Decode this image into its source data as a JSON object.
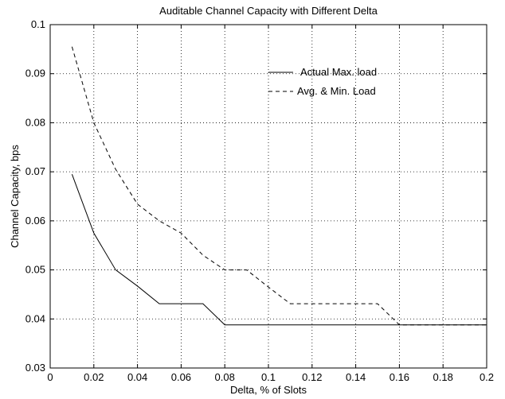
{
  "chart_data": {
    "type": "line",
    "title": "Auditable Channel Capacity with Different Delta",
    "xlabel": "Delta, % of Slots",
    "ylabel": "Channel Capacity, bps",
    "xlim": [
      0,
      0.2
    ],
    "ylim": [
      0.03,
      0.1
    ],
    "xticks": [
      0,
      0.02,
      0.04,
      0.06,
      0.08,
      0.1,
      0.12,
      0.14,
      0.16,
      0.18,
      0.2
    ],
    "xtick_labels": [
      "0",
      "0.02",
      "0.04",
      "0.06",
      "0.08",
      "0.1",
      "0.12",
      "0.14",
      "0.16",
      "0.18",
      "0.2"
    ],
    "yticks": [
      0.03,
      0.04,
      0.05,
      0.06,
      0.07,
      0.08,
      0.09,
      0.1
    ],
    "ytick_labels": [
      "0.03",
      "0.04",
      "0.05",
      "0.06",
      "0.07",
      "0.08",
      "0.09",
      "0.1"
    ],
    "grid": true,
    "legend_position": "top-right",
    "series": [
      {
        "name": "Actual Max. load",
        "style": "solid",
        "color": "#000000",
        "x": [
          0.01,
          0.02,
          0.03,
          0.04,
          0.05,
          0.06,
          0.07,
          0.08,
          0.09,
          0.1,
          0.11,
          0.12,
          0.13,
          0.14,
          0.15,
          0.16,
          0.17,
          0.18,
          0.19,
          0.2
        ],
        "y": [
          0.0695,
          0.0575,
          0.05,
          0.0467,
          0.0431,
          0.0431,
          0.0431,
          0.0388,
          0.0388,
          0.0388,
          0.0388,
          0.0388,
          0.0388,
          0.0388,
          0.0388,
          0.0388,
          0.0388,
          0.0388,
          0.0388,
          0.0388
        ]
      },
      {
        "name": "Avg. & Min. Load",
        "style": "dashed",
        "color": "#000000",
        "x": [
          0.01,
          0.02,
          0.03,
          0.04,
          0.05,
          0.06,
          0.07,
          0.08,
          0.09,
          0.1,
          0.11,
          0.12,
          0.13,
          0.14,
          0.15,
          0.16,
          0.17,
          0.18,
          0.19,
          0.2
        ],
        "y": [
          0.0955,
          0.08,
          0.0705,
          0.0634,
          0.06,
          0.0575,
          0.053,
          0.05,
          0.05,
          0.0465,
          0.0431,
          0.0431,
          0.0431,
          0.0431,
          0.0431,
          0.0388,
          0.0388,
          0.0388,
          0.0388,
          0.0388
        ]
      }
    ]
  }
}
